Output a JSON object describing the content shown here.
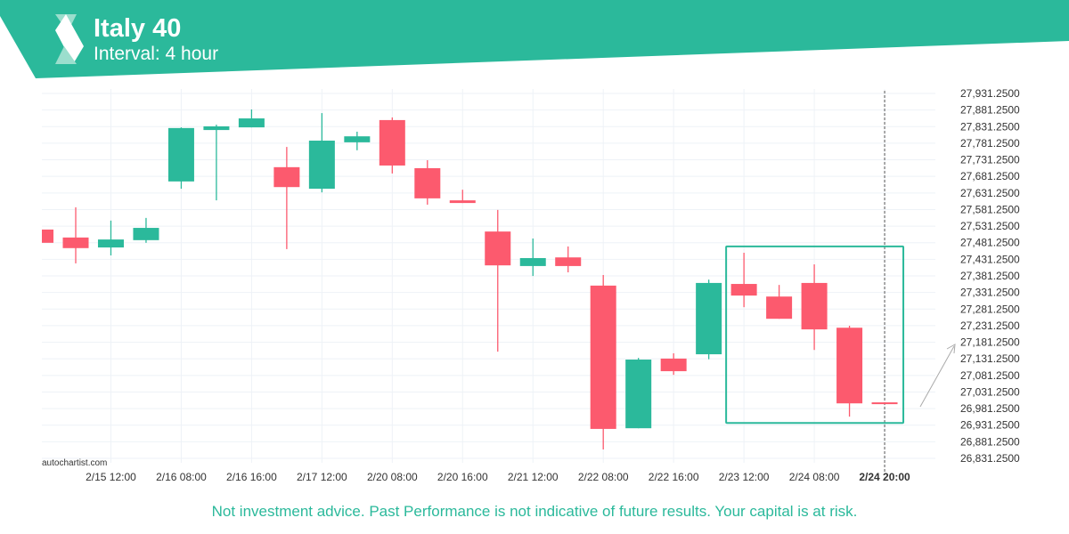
{
  "header": {
    "title": "Italy 40",
    "subtitle": "Interval: 4 hour"
  },
  "colors": {
    "brand": "#2bb99b",
    "bull": "#2bb99b",
    "bear": "#fc5a6e",
    "grid": "#eef2f7"
  },
  "watermark": "autochartist.com",
  "disclaimer": "Not investment advice. Past Performance is not indicative of future results. Your capital is at risk.",
  "chart_data": {
    "type": "candlestick",
    "title": "Italy 40",
    "ylim": [
      26831.25,
      27931.25
    ],
    "y_ticks": [
      "27,931.2500",
      "27,881.2500",
      "27,831.2500",
      "27,781.2500",
      "27,731.2500",
      "27,681.2500",
      "27,631.2500",
      "27,581.2500",
      "27,531.2500",
      "27,481.2500",
      "27,431.2500",
      "27,381.2500",
      "27,331.2500",
      "27,281.2500",
      "27,231.2500",
      "27,181.2500",
      "27,131.2500",
      "27,081.2500",
      "27,031.2500",
      "26,981.2500",
      "26,931.2500",
      "26,881.2500",
      "26,831.2500"
    ],
    "x_labels": [
      {
        "index": 2,
        "label": "2/15 12:00"
      },
      {
        "index": 4,
        "label": "2/16 08:00"
      },
      {
        "index": 6,
        "label": "2/16 16:00"
      },
      {
        "index": 8,
        "label": "2/17 12:00"
      },
      {
        "index": 10,
        "label": "2/20 08:00"
      },
      {
        "index": 12,
        "label": "2/20 16:00"
      },
      {
        "index": 14,
        "label": "2/21 12:00"
      },
      {
        "index": 16,
        "label": "2/22 08:00"
      },
      {
        "index": 18,
        "label": "2/22 16:00"
      },
      {
        "index": 20,
        "label": "2/23 12:00"
      },
      {
        "index": 22,
        "label": "2/24 08:00"
      },
      {
        "index": 24,
        "label": "2/24 20:00",
        "highlight": true
      }
    ],
    "candles": [
      {
        "o": 27521,
        "h": 27521,
        "l": 27481,
        "c": 27481
      },
      {
        "o": 27497,
        "h": 27588,
        "l": 27419,
        "c": 27465
      },
      {
        "o": 27467,
        "h": 27548,
        "l": 27443,
        "c": 27491
      },
      {
        "o": 27489,
        "h": 27556,
        "l": 27481,
        "c": 27526
      },
      {
        "o": 27666,
        "h": 27829,
        "l": 27644,
        "c": 27827
      },
      {
        "o": 27821,
        "h": 27837,
        "l": 27609,
        "c": 27832
      },
      {
        "o": 27829,
        "h": 27883,
        "l": 27829,
        "c": 27856
      },
      {
        "o": 27709,
        "h": 27770,
        "l": 27462,
        "c": 27649
      },
      {
        "o": 27644,
        "h": 27872,
        "l": 27633,
        "c": 27789
      },
      {
        "o": 27784,
        "h": 27816,
        "l": 27760,
        "c": 27802
      },
      {
        "o": 27851,
        "h": 27859,
        "l": 27690,
        "c": 27714
      },
      {
        "o": 27706,
        "h": 27730,
        "l": 27596,
        "c": 27615
      },
      {
        "o": 27609,
        "h": 27641,
        "l": 27601,
        "c": 27601
      },
      {
        "o": 27515,
        "h": 27580,
        "l": 27153,
        "c": 27413
      },
      {
        "o": 27411,
        "h": 27494,
        "l": 27381,
        "c": 27435
      },
      {
        "o": 27437,
        "h": 27470,
        "l": 27392,
        "c": 27411
      },
      {
        "o": 27352,
        "h": 27384,
        "l": 26858,
        "c": 26920
      },
      {
        "o": 26922,
        "h": 27134,
        "l": 26922,
        "c": 27129
      },
      {
        "o": 27132,
        "h": 27148,
        "l": 27083,
        "c": 27094
      },
      {
        "o": 27145,
        "h": 27370,
        "l": 27130,
        "c": 27360
      },
      {
        "o": 27357,
        "h": 27451,
        "l": 27287,
        "c": 27322
      },
      {
        "o": 27319,
        "h": 27354,
        "l": 27252,
        "c": 27252
      },
      {
        "o": 27360,
        "h": 27416,
        "l": 27158,
        "c": 27220
      },
      {
        "o": 27225,
        "h": 27231,
        "l": 26957,
        "c": 26997
      },
      {
        "o": 27000,
        "h": 27000,
        "l": 26997,
        "c": 26997
      }
    ],
    "pattern_box": {
      "from_index": 20,
      "to_index": 24,
      "high": 27470,
      "low": 26938
    },
    "current_index": 24,
    "forecast_arrow": "up"
  }
}
